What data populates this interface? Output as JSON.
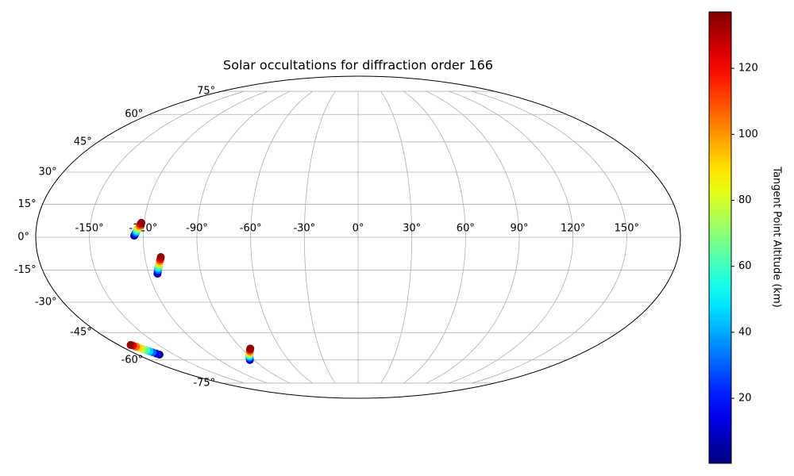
{
  "chart_data": {
    "type": "scatter",
    "projection": "mollweide",
    "title": "Solar occultations for diffraction order 166",
    "x": [
      -125.0,
      -124.6,
      -124.2,
      -123.8,
      -123.5,
      -123.1,
      -122.7,
      -122.3,
      -121.9,
      -121.5,
      -115.0,
      -114.6,
      -114.1,
      -113.7,
      -113.2,
      -112.8,
      -112.3,
      -111.9,
      -111.4,
      -111.0,
      -162.0,
      -163.0,
      -164.0,
      -165.0,
      -166.0,
      -167.0,
      -168.0,
      -169.0,
      -170.0,
      -171.0,
      -93.4,
      -92.3,
      -91.2,
      -90.0,
      -88.9,
      -87.8,
      -86.7,
      -85.6,
      -84.4,
      -83.3
    ],
    "y": [
      0.7,
      1.3,
      2.0,
      2.6,
      3.3,
      3.9,
      4.6,
      5.2,
      5.9,
      6.5,
      -16.6,
      -15.8,
      -14.9,
      -14.1,
      -13.3,
      -12.4,
      -11.6,
      -10.7,
      -9.9,
      -9.0,
      -56.9,
      -56.3,
      -55.6,
      -55.0,
      -54.4,
      -53.8,
      -53.1,
      -52.5,
      -51.9,
      -51.6,
      -60.0,
      -59.3,
      -58.6,
      -57.8,
      -57.1,
      -56.4,
      -55.7,
      -55.0,
      -54.2,
      -53.5
    ],
    "values": [
      2,
      16,
      31,
      46,
      61,
      76,
      91,
      106,
      121,
      135,
      2,
      16,
      31,
      46,
      61,
      76,
      91,
      106,
      121,
      135,
      2,
      16,
      31,
      46,
      61,
      76,
      91,
      106,
      121,
      135,
      2,
      16,
      31,
      46,
      61,
      76,
      91,
      106,
      121,
      135
    ],
    "colormap": "jet",
    "xticks": [
      {
        "value": -150,
        "label": "-150°"
      },
      {
        "value": -120,
        "label": "-120°"
      },
      {
        "value": -90,
        "label": "-90°"
      },
      {
        "value": -60,
        "label": "-60°"
      },
      {
        "value": -30,
        "label": "-30°"
      },
      {
        "value": 0,
        "label": "0°"
      },
      {
        "value": 30,
        "label": "30°"
      },
      {
        "value": 60,
        "label": "60°"
      },
      {
        "value": 90,
        "label": "90°"
      },
      {
        "value": 120,
        "label": "120°"
      },
      {
        "value": 150,
        "label": "150°"
      }
    ],
    "yticks": [
      {
        "value": -75,
        "label": "-75°"
      },
      {
        "value": -60,
        "label": "-60°"
      },
      {
        "value": -45,
        "label": "-45°"
      },
      {
        "value": -30,
        "label": "-30°"
      },
      {
        "value": -15,
        "label": "-15°"
      },
      {
        "value": 0,
        "label": "0°"
      },
      {
        "value": 15,
        "label": "15°"
      },
      {
        "value": 30,
        "label": "30°"
      },
      {
        "value": 45,
        "label": "45°"
      },
      {
        "value": 60,
        "label": "60°"
      },
      {
        "value": 75,
        "label": "75°"
      }
    ],
    "grid": true,
    "colorbar": {
      "label": "Tangent Point Altitude (km)",
      "lim": [
        0.3,
        137.1
      ],
      "ticks": [
        20,
        40,
        60,
        80,
        100,
        120
      ]
    }
  }
}
